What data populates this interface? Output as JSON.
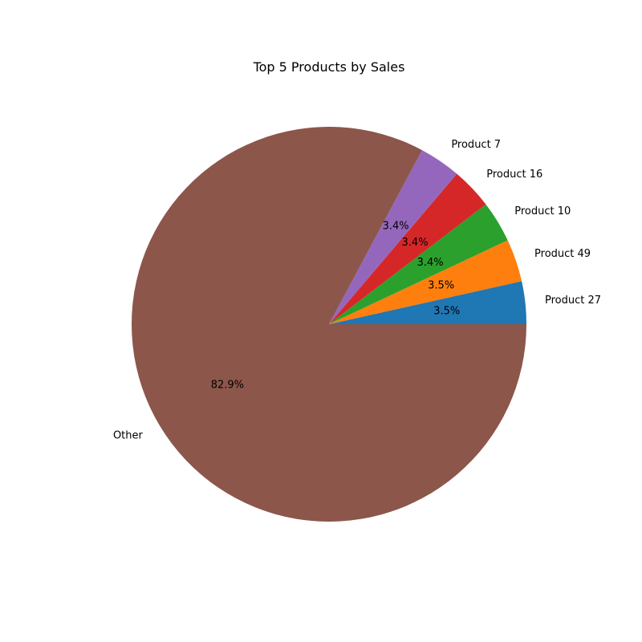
{
  "chart_data": {
    "type": "pie",
    "title": "Top 5 Products by Sales",
    "categories": [
      "Product 27",
      "Product 49",
      "Product 10",
      "Product 16",
      "Product 7",
      "Other"
    ],
    "values": [
      3.5,
      3.5,
      3.4,
      3.4,
      3.4,
      82.9
    ],
    "value_labels": [
      "3.5%",
      "3.5%",
      "3.4%",
      "3.4%",
      "3.4%",
      "82.9%"
    ],
    "colors": [
      "#1f77b4",
      "#ff7f0e",
      "#2ca02c",
      "#d62728",
      "#9467bd",
      "#8c564b"
    ],
    "start_angle_deg": 0,
    "direction": "counterclockwise",
    "legend": "none"
  }
}
